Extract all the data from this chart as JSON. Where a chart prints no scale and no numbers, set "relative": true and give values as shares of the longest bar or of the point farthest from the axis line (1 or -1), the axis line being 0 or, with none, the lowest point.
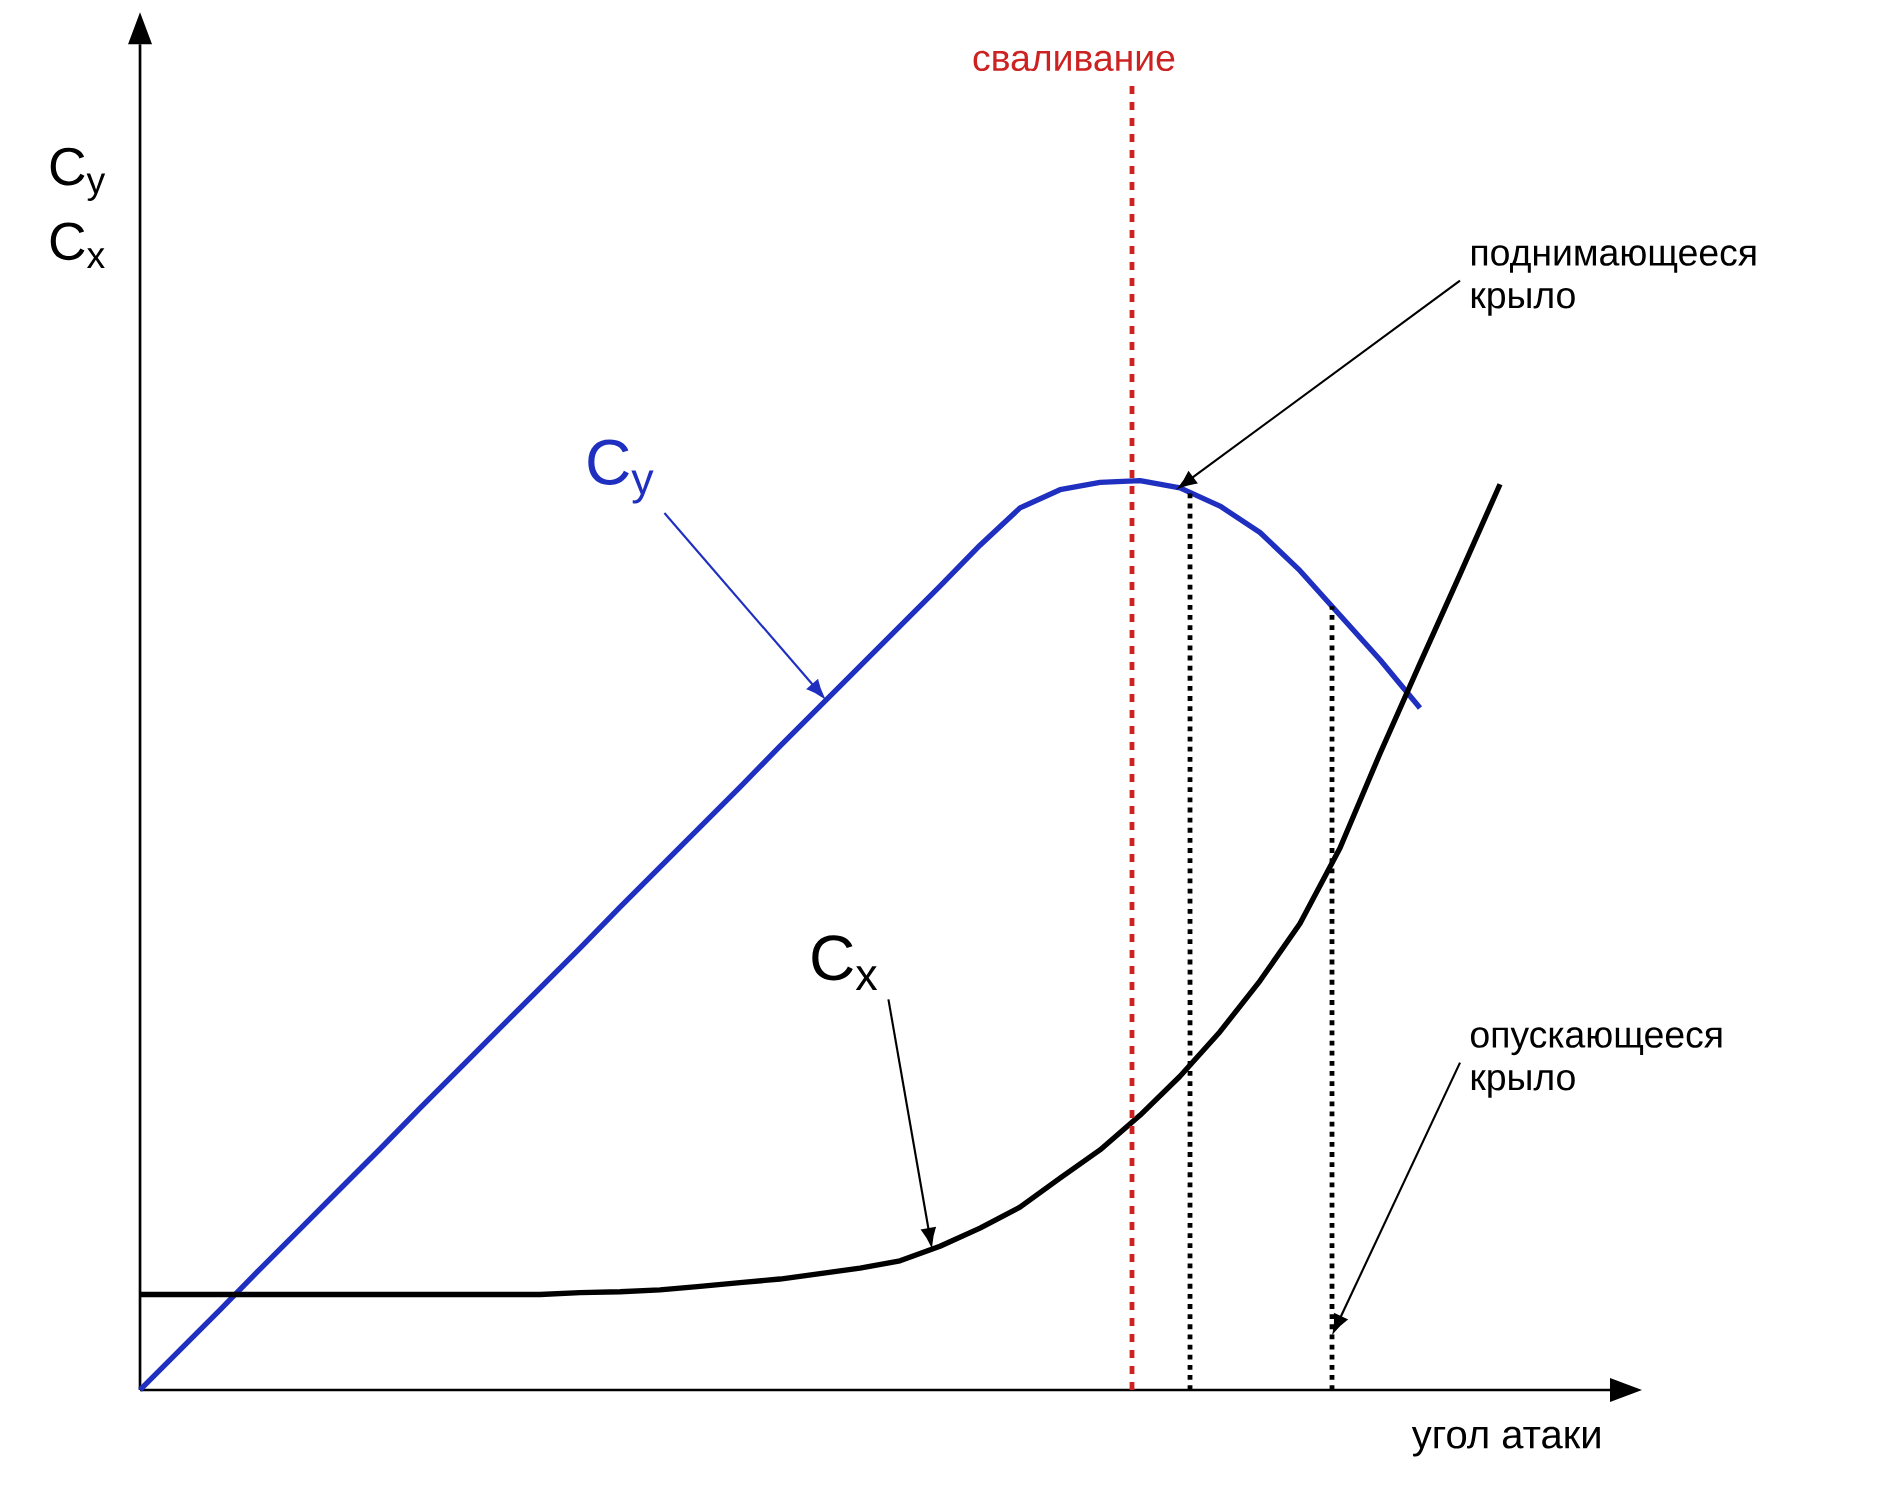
{
  "chart_data": {
    "type": "line",
    "relative": true,
    "xlabel": "угол атаки",
    "ylabel": "C$_{y}$ C$_{x}$",
    "marker": "none",
    "line_style": "solid",
    "categories": [
      null,
      null,
      null,
      null,
      null,
      null,
      null,
      null,
      null,
      null,
      null,
      null,
      null,
      null,
      null,
      null,
      null,
      null,
      null,
      null,
      null,
      null,
      null,
      null,
      null,
      null,
      null,
      null,
      null,
      null,
      null,
      null,
      null,
      null,
      null
    ],
    "series": [
      {
        "name": "C$_{y}$",
        "color": "#1f2fc0",
        "values": [
          0,
          0.044,
          0.088,
          0.133,
          0.177,
          0.221,
          0.265,
          0.31,
          0.354,
          0.398,
          0.442,
          0.486,
          0.531,
          0.575,
          0.619,
          0.663,
          0.708,
          0.752,
          0.796,
          0.84,
          0.884,
          0.929,
          0.97,
          0.99,
          0.998,
          1.0,
          0.992,
          0.972,
          0.943,
          0.901,
          0.852,
          0.803,
          0.75,
          null,
          null
        ]
      },
      {
        "name": "C$_{x}$",
        "color": "#000000",
        "values": [
          0.105,
          0.105,
          0.105,
          0.105,
          0.105,
          0.105,
          0.105,
          0.105,
          0.105,
          0.105,
          0.105,
          0.107,
          0.108,
          0.11,
          0.114,
          0.118,
          0.122,
          0.128,
          0.134,
          0.142,
          0.158,
          0.178,
          0.201,
          0.233,
          0.264,
          0.302,
          0.345,
          0.394,
          0.45,
          0.513,
          0.596,
          0.7,
          0.799,
          0.897,
          0.996
        ]
      }
    ],
    "annotations": [
      "сваливание",
      "поднимающееся крыло",
      "опускающееся крыло"
    ]
  }
}
